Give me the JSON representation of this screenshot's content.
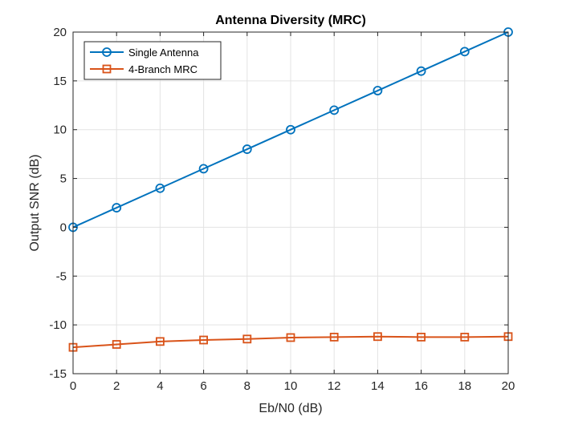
{
  "chart_data": {
    "type": "line",
    "title": "Antenna Diversity (MRC)",
    "xlabel": "Eb/N0 (dB)",
    "ylabel": "Output SNR (dB)",
    "xlim": [
      0,
      20
    ],
    "ylim": [
      -15,
      20
    ],
    "xticks": [
      0,
      2,
      4,
      6,
      8,
      10,
      12,
      14,
      16,
      18,
      20
    ],
    "yticks": [
      -15,
      -10,
      -5,
      0,
      5,
      10,
      15,
      20
    ],
    "grid": true,
    "legend_position": "top-left",
    "x": [
      0,
      2,
      4,
      6,
      8,
      10,
      12,
      14,
      16,
      18,
      20
    ],
    "series": [
      {
        "name": "Single Antenna",
        "color": "#0072BD",
        "marker": "circle",
        "values": [
          0,
          2,
          4,
          6,
          8,
          10,
          12,
          14,
          16,
          18,
          20
        ]
      },
      {
        "name": "4-Branch MRC",
        "color": "#D95319",
        "marker": "square",
        "values": [
          -12.3,
          -12.0,
          -11.7,
          -11.55,
          -11.45,
          -11.3,
          -11.25,
          -11.2,
          -11.25,
          -11.25,
          -11.2
        ]
      }
    ]
  }
}
